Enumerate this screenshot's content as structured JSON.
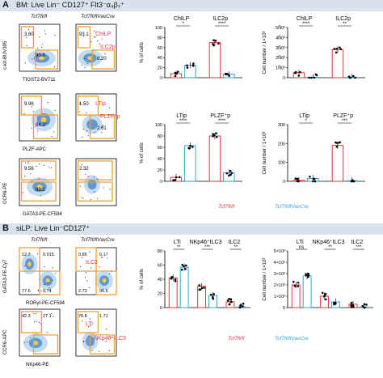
{
  "panelA": {
    "letter": "A",
    "banner": "BM: Live Lin⁻ CD127⁺ Flt3⁻α₄β₇⁺",
    "col_wt": "Tcf7fl/fl",
    "col_ko": "Tcf7fl/flVavCre",
    "flow": [
      {
        "ylabel": "c-kit-BUV395",
        "xlabel": "TIGST2-BV711",
        "wt_nums": [
          "3.80",
          "90.9"
        ],
        "ko_nums": [
          "93.1",
          "8.20"
        ],
        "gate_labels": [
          "ChILP",
          "ILC2p"
        ]
      },
      {
        "ylabel": "",
        "xlabel": "PLZF-APC",
        "wt_nums": [
          "9.96",
          "84.3"
        ],
        "ko_nums": [
          "1.50",
          "2.61"
        ],
        "gate_labels": [
          "LTip",
          "PLZF⁺p"
        ]
      },
      {
        "ylabel": "CCR6-PE",
        "xlabel": "GATA3-PE-CF594",
        "wt_nums": [
          "9.56",
          "83.1"
        ],
        "ko_nums": [
          "2.32"
        ],
        "gate_labels": []
      }
    ],
    "bar_titles_pct": [
      [
        "ChILP",
        "ILC2p"
      ],
      [
        "LTip",
        "PLZF⁺p"
      ]
    ],
    "bar_titles_num": [
      [
        "ChILP",
        "ILC2p"
      ],
      [
        "LTip",
        "PLZF⁺p"
      ]
    ],
    "ylabel_pct": "% of cells",
    "ylabel_num": "Cell number / 1×10³",
    "legend": [
      "Tcf7fl/fl",
      "Tcf7fl/flVavCre"
    ]
  },
  "panelB": {
    "letter": "B",
    "banner": "siLP: Live Lin⁻CD127⁺",
    "col_wt": "Tcf7fl/fl",
    "col_ko": "Tcf7fl/flVavCre",
    "flow": [
      {
        "ylabel": "GATA3-PE-Cy7",
        "xlabel": "RORγt-PE-CF594",
        "wt_nums": [
          "12.7",
          "0.015",
          "77.6",
          "0.74"
        ],
        "ko_nums": [
          "0.85",
          "0.17",
          "2.73",
          "96.6"
        ],
        "gate_labels": [
          "ILC2"
        ]
      },
      {
        "ylabel": "CCR6-APC",
        "xlabel": "NKp46-PE",
        "wt_nums": [
          "42.3",
          "27.1"
        ],
        "ko_nums": [
          "78.8",
          "1.71"
        ],
        "gate_labels": [
          "LTi",
          "NKp46⁺ILC3"
        ]
      }
    ],
    "bar_titles": [
      "LTi",
      "NKp46⁺ILC3",
      "ILC2"
    ],
    "sig_pct": [
      "**",
      "***",
      "**"
    ],
    "sig_num": [
      "ns",
      "**",
      "***"
    ],
    "ylabel_pct": "% of cells",
    "ylabel_num": "Cell number / 1×10³",
    "legend": [
      "Tcf7fl/fl",
      "Tcf7fl/flVavCre"
    ]
  },
  "colors": {
    "wt": "#e6323c",
    "ko": "#2aa7d6",
    "gate": "#f0a030",
    "banner": "#d9e2ec"
  },
  "chart_data": [
    {
      "type": "bar",
      "title": "ChILP / ILC2p",
      "ylabel": "% of cells",
      "ylim": [
        0,
        100
      ],
      "categories": [
        "ChILP",
        "ILC2p"
      ],
      "series": [
        {
          "name": "Tcf7fl/fl",
          "values": [
            8,
            70
          ]
        },
        {
          "name": "Tcf7fl/flVavCre",
          "values": [
            25,
            7
          ]
        }
      ],
      "significance": [
        "*",
        "****"
      ],
      "yticks": [
        "0",
        "20",
        "40",
        "60",
        "80",
        "100"
      ]
    },
    {
      "type": "bar",
      "title": "ChILP / ILC2p",
      "ylabel": "Cell number / 1×10³",
      "ylim": [
        0,
        5
      ],
      "categories": [
        "ChILP",
        "ILC2p"
      ],
      "series": [
        {
          "name": "Tcf7fl/fl",
          "values": [
            0.5,
            2.8
          ]
        },
        {
          "name": "Tcf7fl/flVavCre",
          "values": [
            0.05,
            0.05
          ]
        }
      ],
      "significance": [
        "****",
        "**"
      ],
      "yticks": [
        "0",
        "1Ñ0³",
        "2Ñ0³",
        "3Ñ0³",
        "4Ñ0³",
        "5Ñ0³"
      ]
    },
    {
      "type": "bar",
      "title": "LTip / PLZF⁺p",
      "ylabel": "% of cells",
      "ylim": [
        0,
        100
      ],
      "categories": [
        "LTip",
        "PLZF⁺p"
      ],
      "series": [
        {
          "name": "Tcf7fl/fl",
          "values": [
            7,
            80
          ]
        },
        {
          "name": "Tcf7fl/flVavCre",
          "values": [
            63,
            15
          ]
        }
      ],
      "significance": [
        "****",
        "****"
      ],
      "yticks": [
        "0",
        "20",
        "40",
        "60",
        "80",
        "100"
      ]
    },
    {
      "type": "bar",
      "title": "LTip / PLZF⁺p",
      "ylabel": "Cell number / 1×10³",
      "ylim": [
        0,
        300
      ],
      "categories": [
        "LTip",
        "PLZF⁺p"
      ],
      "series": [
        {
          "name": "Tcf7fl/fl",
          "values": [
            5,
            190
          ]
        },
        {
          "name": "Tcf7fl/flVavCre",
          "values": [
            15,
            3
          ]
        }
      ],
      "significance": [
        "*",
        "***"
      ],
      "yticks": [
        "0",
        "100",
        "200",
        "300"
      ]
    },
    {
      "type": "bar",
      "title": "siLP",
      "ylabel": "% of cells",
      "ylim": [
        0,
        80
      ],
      "categories": [
        "LTi",
        "NKp46⁺ILC3",
        "ILC2"
      ],
      "series": [
        {
          "name": "Tcf7fl/fl",
          "values": [
            42,
            30,
            8
          ]
        },
        {
          "name": "Tcf7fl/flVavCre",
          "values": [
            57,
            17,
            1
          ]
        }
      ],
      "significance": [
        "**",
        "***",
        "**"
      ],
      "yticks": [
        "0",
        "20",
        "40",
        "60",
        "80"
      ]
    },
    {
      "type": "bar",
      "title": "siLP",
      "ylabel": "Cell number / 1×10³",
      "ylim": [
        0,
        5
      ],
      "categories": [
        "LTi",
        "NKp46⁺ILC3",
        "ILC2"
      ],
      "series": [
        {
          "name": "Tcf7fl/fl",
          "values": [
            2.0,
            1.0,
            0.3
          ]
        },
        {
          "name": "Tcf7fl/flVavCre",
          "values": [
            2.8,
            0.5,
            0.05
          ]
        }
      ],
      "significance": [
        "ns",
        "**",
        "***"
      ],
      "yticks": [
        "0",
        "1×10³",
        "2×10³",
        "3×10³",
        "4×10³",
        "5×10³"
      ]
    }
  ]
}
